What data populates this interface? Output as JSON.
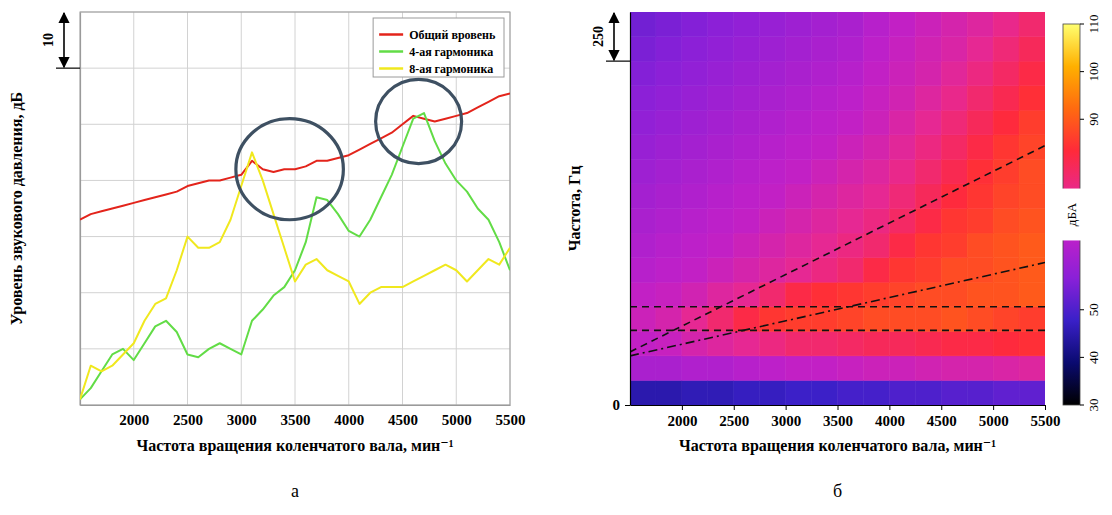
{
  "chart_data": [
    {
      "type": "line",
      "panel_label": "а",
      "xlabel": "Частота вращения коленчатого вала, мин⁻¹",
      "ylabel": "Уровень звукового давления, дБ",
      "x": [
        1500,
        1600,
        1700,
        1800,
        1900,
        2000,
        2100,
        2200,
        2300,
        2400,
        2500,
        2600,
        2700,
        2800,
        2900,
        3000,
        3100,
        3200,
        3300,
        3400,
        3500,
        3600,
        3700,
        3800,
        3900,
        4000,
        4100,
        4200,
        4300,
        4400,
        4500,
        4600,
        4700,
        4800,
        4900,
        5000,
        5100,
        5200,
        5300,
        5400,
        5500
      ],
      "series": [
        {
          "name": "Общий вровень",
          "color": "#e3241b",
          "values": [
            33,
            34,
            34.5,
            35,
            35.5,
            36,
            36.5,
            37,
            37.5,
            38,
            39,
            39.5,
            40,
            40,
            40.5,
            41,
            43.5,
            42,
            41.5,
            42,
            42,
            42.5,
            43.5,
            43.5,
            44,
            44.5,
            45.5,
            46.5,
            47.5,
            48.5,
            50,
            51.5,
            51,
            50.5,
            51,
            51.5,
            52,
            53,
            54,
            55,
            55.5
          ]
        },
        {
          "name": "4-ая гармоника",
          "color": "#62dc46",
          "values": [
            1,
            3,
            6,
            9,
            10,
            8,
            11,
            14,
            15,
            13,
            9,
            8.5,
            10,
            11,
            10,
            9,
            15,
            17,
            19.5,
            21,
            24,
            29,
            37,
            36.5,
            34,
            31,
            30,
            33,
            37,
            41,
            46,
            51,
            52,
            47,
            43,
            40,
            38,
            35,
            33,
            29,
            24
          ]
        },
        {
          "name": "8-ая гармоника",
          "color": "#f0e81e",
          "values": [
            1,
            7,
            6,
            7,
            9,
            11,
            15,
            18,
            19,
            24,
            30,
            28,
            28,
            29,
            33,
            39,
            45,
            40,
            34,
            28,
            22,
            25,
            26,
            24,
            23,
            22,
            18,
            20,
            21,
            21,
            21,
            22,
            23,
            24,
            25,
            24,
            22,
            24,
            26,
            25,
            28
          ]
        }
      ],
      "xlim": [
        1500,
        5500
      ],
      "xticks": [
        2000,
        2500,
        3000,
        3500,
        4000,
        4500,
        5000,
        5500
      ],
      "ylim": [
        0,
        70
      ],
      "yticks": [
        0,
        10,
        20,
        30,
        40,
        50,
        60,
        70
      ],
      "grid": true,
      "legend": "upper right",
      "tick_labels": "x",
      "scale_bar": 10,
      "highlights": [
        {
          "x": [
            2950,
            3950
          ],
          "y": [
            33,
            51
          ]
        },
        {
          "x": [
            4250,
            5050
          ],
          "y": [
            43,
            58
          ]
        }
      ]
    },
    {
      "type": "heatmap",
      "panel_label": "б",
      "xlabel": "Частота вращения коленчатого вала, мин⁻¹",
      "ylabel": "Частота, Гц",
      "x_bins": [
        1500,
        1750,
        2000,
        2250,
        2500,
        2750,
        3000,
        3250,
        3500,
        3750,
        4000,
        4250,
        4500,
        4750,
        5000,
        5250,
        5500
      ],
      "y_bins": [
        0,
        125,
        250,
        375,
        500,
        625,
        750,
        875,
        1000,
        1125,
        1250,
        1375,
        1500,
        1625,
        1750,
        1875,
        2000
      ],
      "cells": [
        [
          45,
          45,
          46,
          46,
          47,
          47,
          48,
          48,
          49,
          49,
          50,
          50,
          51,
          51,
          52,
          52
        ],
        [
          62,
          62,
          63,
          63,
          64,
          65,
          66,
          66,
          67,
          68,
          68,
          69,
          70,
          70,
          71,
          72
        ],
        [
          66,
          67,
          70,
          72,
          74,
          76,
          78,
          78,
          79,
          80,
          80,
          81,
          82,
          82,
          83,
          84
        ],
        [
          68,
          70,
          74,
          78,
          82,
          85,
          86,
          86,
          87,
          88,
          88,
          88,
          89,
          88,
          87,
          86
        ],
        [
          66,
          67,
          69,
          72,
          74,
          78,
          82,
          84,
          85,
          86,
          87,
          88,
          88,
          89,
          89,
          90
        ],
        [
          64,
          65,
          66,
          68,
          70,
          72,
          74,
          76,
          78,
          82,
          85,
          86,
          88,
          88,
          89,
          90
        ],
        [
          63,
          64,
          65,
          66,
          68,
          70,
          72,
          74,
          76,
          78,
          82,
          85,
          86,
          88,
          89,
          90
        ],
        [
          62,
          63,
          64,
          65,
          66,
          68,
          70,
          72,
          74,
          76,
          79,
          82,
          85,
          86,
          88,
          89
        ],
        [
          61,
          62,
          63,
          64,
          65,
          66,
          68,
          70,
          72,
          74,
          77,
          80,
          83,
          85,
          87,
          88
        ],
        [
          60,
          61,
          62,
          63,
          64,
          65,
          66,
          68,
          70,
          72,
          75,
          78,
          81,
          84,
          86,
          88
        ],
        [
          59,
          60,
          61,
          62,
          63,
          64,
          65,
          66,
          68,
          70,
          73,
          76,
          79,
          82,
          85,
          87
        ],
        [
          58,
          59,
          60,
          61,
          62,
          63,
          64,
          65,
          66,
          68,
          71,
          74,
          77,
          80,
          83,
          86
        ],
        [
          57,
          58,
          59,
          60,
          61,
          62,
          63,
          64,
          65,
          67,
          69,
          72,
          75,
          78,
          81,
          84
        ],
        [
          56,
          57,
          58,
          59,
          60,
          61,
          62,
          63,
          64,
          66,
          68,
          70,
          73,
          76,
          79,
          82
        ],
        [
          55,
          56,
          57,
          58,
          59,
          60,
          61,
          62,
          63,
          65,
          67,
          69,
          71,
          74,
          77,
          80
        ],
        [
          54,
          55,
          56,
          57,
          58,
          59,
          60,
          61,
          62,
          64,
          66,
          68,
          70,
          72,
          75,
          78
        ]
      ],
      "xlim": [
        1500,
        5500
      ],
      "xticks": [
        2000,
        2500,
        3000,
        3500,
        4000,
        4500,
        5000,
        5500
      ],
      "ylim": [
        0,
        2000
      ],
      "yticks": [
        0
      ],
      "scale_bar": 250,
      "colorbar_range": [
        30,
        110
      ],
      "colorbar_ticks": [
        30,
        40,
        50,
        90,
        100,
        110
      ],
      "colorbar_label": "дБА",
      "hlines": [
        380,
        500
      ],
      "lines": [
        {
          "x": [
            1500,
            5500
          ],
          "y": [
            270,
            1320
          ],
          "line_style": "dashed"
        },
        {
          "x": [
            1500,
            5500
          ],
          "y": [
            250,
            725
          ],
          "line_style": "dashdot"
        }
      ]
    }
  ]
}
